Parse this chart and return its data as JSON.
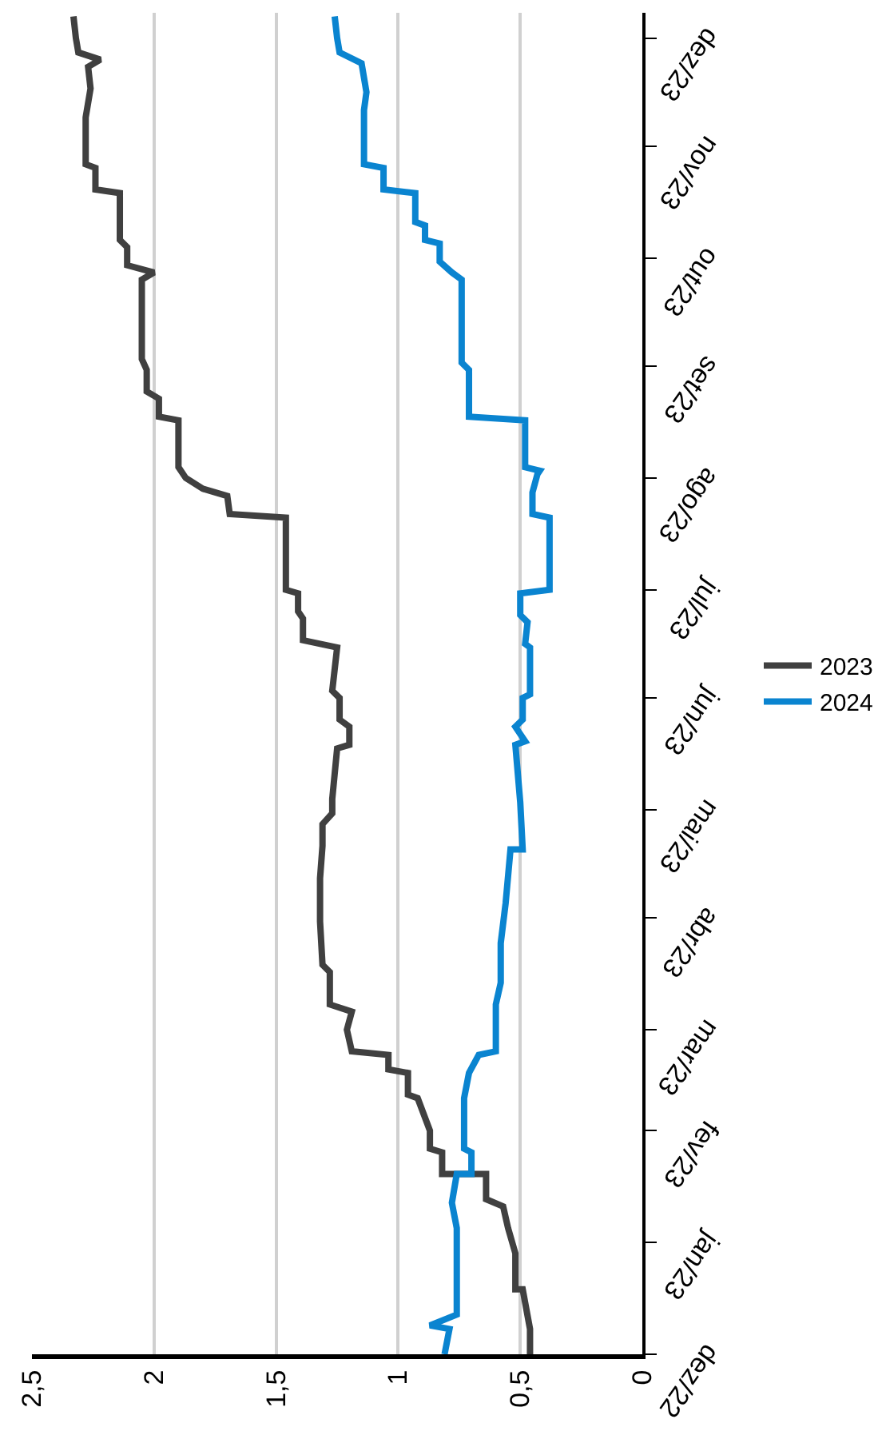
{
  "chart_data": {
    "type": "line",
    "orientation": "horizontal",
    "legend": "right",
    "grid": "x",
    "xlim": [
      2.5,
      0
    ],
    "xticks": [
      0,
      {
        "value": 0.5,
        "label": "0,5"
      },
      1,
      {
        "value": 1.5,
        "label": "1,5"
      },
      2,
      {
        "value": 2.5,
        "label": "2,5"
      }
    ],
    "ylim": [
      "2022-12-01",
      "2023-12-08"
    ],
    "yticks": [
      {
        "value": "2022-12-01",
        "label": "dez/22"
      },
      {
        "value": "2023-01-01",
        "label": "jan/23"
      },
      {
        "value": "2023-02-01",
        "label": "fev/23"
      },
      {
        "value": "2023-03-01",
        "label": "mar/23"
      },
      {
        "value": "2023-04-01",
        "label": "abr/23"
      },
      {
        "value": "2023-05-01",
        "label": "mai/23"
      },
      {
        "value": "2023-06-01",
        "label": "jun/23"
      },
      {
        "value": "2023-07-01",
        "label": "jul/23"
      },
      {
        "value": "2023-08-01",
        "label": "ago/23"
      },
      {
        "value": "2023-09-01",
        "label": "set/23"
      },
      {
        "value": "2023-10-01",
        "label": "out/23"
      },
      {
        "value": "2023-11-01",
        "label": "nov/23"
      },
      {
        "value": "2023-12-01",
        "label": "dez/23"
      }
    ],
    "series": [
      {
        "name": "2023",
        "color": "#404040",
        "x": [
          "2022-12-01",
          "2022-12-08",
          "2022-12-19",
          "2022-12-19",
          "2022-12-29",
          "2023-01-05",
          "2023-01-11",
          "2023-01-13",
          "2023-01-20",
          "2023-01-20",
          "2023-01-26",
          "2023-01-27",
          "2023-02-01",
          "2023-02-10",
          "2023-02-11",
          "2023-02-17",
          "2023-02-18",
          "2023-02-22",
          "2023-02-23",
          "2023-03-01",
          "2023-03-06",
          "2023-03-08",
          "2023-03-17",
          "2023-03-19",
          "2023-03-31",
          "2023-04-12",
          "2023-04-21",
          "2023-04-27",
          "2023-04-30",
          "2023-05-04",
          "2023-05-18",
          "2023-05-19",
          "2023-05-24",
          "2023-05-26",
          "2023-06-01",
          "2023-06-03",
          "2023-06-15",
          "2023-06-17",
          "2023-06-23",
          "2023-06-25",
          "2023-06-30",
          "2023-07-01",
          "2023-07-21",
          "2023-07-22",
          "2023-07-27",
          "2023-07-29",
          "2023-08-01",
          "2023-08-04",
          "2023-08-17",
          "2023-08-18",
          "2023-08-23",
          "2023-08-25",
          "2023-08-31",
          "2023-09-03",
          "2023-09-25",
          "2023-09-27",
          "2023-09-29",
          "2023-10-04",
          "2023-10-06",
          "2023-10-19",
          "2023-10-20",
          "2023-10-26",
          "2023-10-27",
          "2023-11-09",
          "2023-11-17",
          "2023-11-23",
          "2023-11-25",
          "2023-11-27",
          "2023-12-01",
          "2023-12-07"
        ],
        "values": [
          0.46,
          0.46,
          0.49,
          0.52,
          0.52,
          0.55,
          0.57,
          0.64,
          0.64,
          0.82,
          0.82,
          0.87,
          0.87,
          0.92,
          0.96,
          0.96,
          1.04,
          1.04,
          1.19,
          1.21,
          1.19,
          1.28,
          1.28,
          1.31,
          1.32,
          1.32,
          1.31,
          1.31,
          1.27,
          1.27,
          1.25,
          1.2,
          1.2,
          1.24,
          1.24,
          1.27,
          1.25,
          1.39,
          1.39,
          1.41,
          1.41,
          1.46,
          1.46,
          1.69,
          1.7,
          1.8,
          1.87,
          1.9,
          1.9,
          1.98,
          1.98,
          2.03,
          2.03,
          2.05,
          2.05,
          2.0,
          2.11,
          2.11,
          2.14,
          2.14,
          2.24,
          2.24,
          2.28,
          2.28,
          2.26,
          2.27,
          2.22,
          2.31,
          2.32,
          2.33
        ]
      },
      {
        "name": "2024",
        "color": "#0a84d0",
        "x": [
          "2022-12-01",
          "2022-12-08",
          "2022-12-09",
          "2022-12-12",
          "2023-01-05",
          "2023-01-12",
          "2023-01-20",
          "2023-01-20",
          "2023-01-26",
          "2023-01-27",
          "2023-02-10",
          "2023-02-17",
          "2023-02-22",
          "2023-02-23",
          "2023-03-08",
          "2023-03-14",
          "2023-03-25",
          "2023-04-05",
          "2023-04-20",
          "2023-04-20",
          "2023-05-03",
          "2023-05-19",
          "2023-05-20",
          "2023-05-24",
          "2023-05-26",
          "2023-06-01",
          "2023-06-02",
          "2023-06-15",
          "2023-06-16",
          "2023-06-22",
          "2023-06-24",
          "2023-06-30",
          "2023-07-01",
          "2023-07-21",
          "2023-07-22",
          "2023-07-28",
          "2023-08-02",
          "2023-08-03",
          "2023-08-04",
          "2023-08-17",
          "2023-08-18",
          "2023-08-31",
          "2023-09-02",
          "2023-09-25",
          "2023-09-27",
          "2023-09-30",
          "2023-10-05",
          "2023-10-06",
          "2023-10-10",
          "2023-10-11",
          "2023-10-19",
          "2023-10-20",
          "2023-10-26",
          "2023-10-27",
          "2023-11-11",
          "2023-11-16",
          "2023-11-24",
          "2023-11-27",
          "2023-12-01",
          "2023-12-07"
        ],
        "values": [
          0.81,
          0.79,
          0.87,
          0.76,
          0.76,
          0.78,
          0.76,
          0.7,
          0.7,
          0.73,
          0.73,
          0.71,
          0.67,
          0.6,
          0.6,
          0.58,
          0.58,
          0.56,
          0.54,
          0.49,
          0.5,
          0.52,
          0.48,
          0.52,
          0.49,
          0.49,
          0.46,
          0.46,
          0.48,
          0.47,
          0.5,
          0.5,
          0.38,
          0.38,
          0.45,
          0.45,
          0.43,
          0.42,
          0.48,
          0.48,
          0.71,
          0.71,
          0.74,
          0.74,
          0.78,
          0.83,
          0.83,
          0.89,
          0.89,
          0.93,
          0.93,
          1.06,
          1.06,
          1.14,
          1.14,
          1.13,
          1.15,
          1.24,
          1.25,
          1.26
        ]
      }
    ]
  }
}
